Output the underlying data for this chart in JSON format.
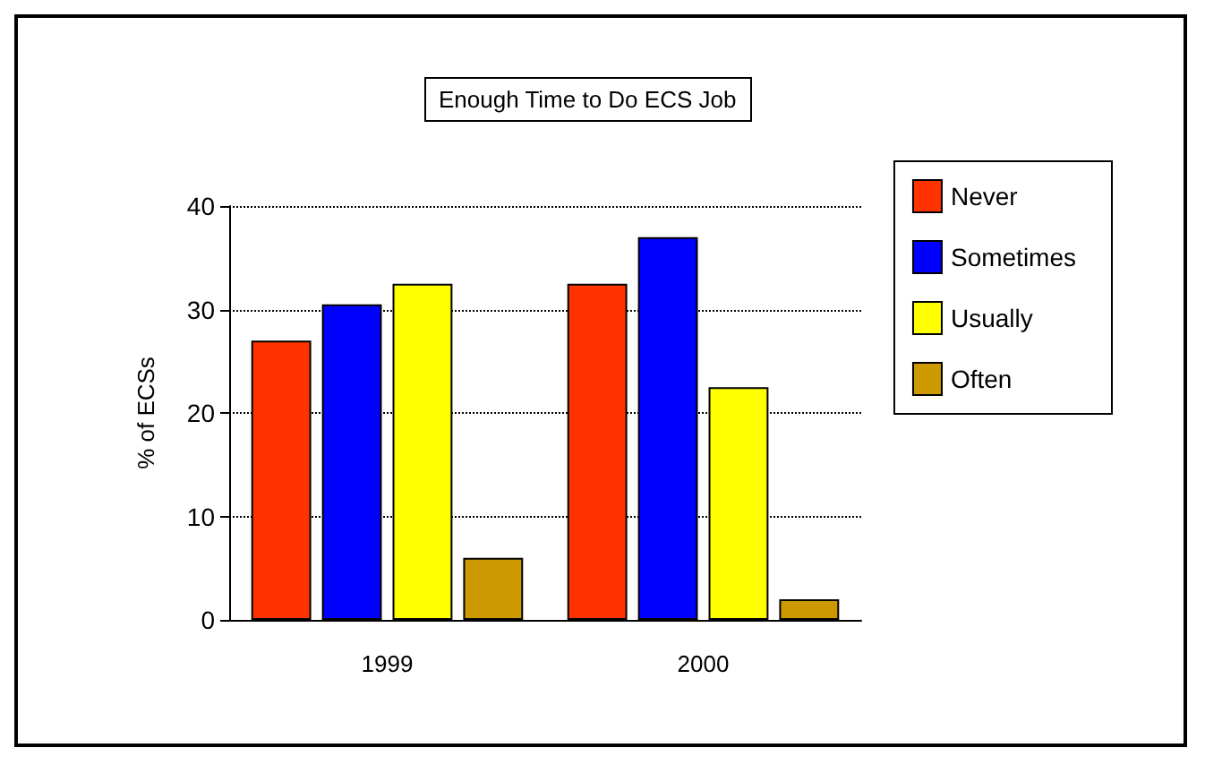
{
  "chart_data": {
    "type": "bar",
    "title": "Enough Time to Do ECS Job",
    "ylabel": "% of ECSs",
    "categories": [
      "1999",
      "2000"
    ],
    "series": [
      {
        "name": "Never",
        "color": "#ff3300",
        "values": [
          27,
          32.5
        ]
      },
      {
        "name": "Sometimes",
        "color": "#0000ff",
        "values": [
          30.5,
          37
        ]
      },
      {
        "name": "Usually",
        "color": "#ffff00",
        "values": [
          32.5,
          22.5
        ]
      },
      {
        "name": "Often",
        "color": "#cc9900",
        "values": [
          6,
          2
        ]
      }
    ],
    "ylim": [
      0,
      40
    ],
    "yticks": [
      0,
      10,
      20,
      30,
      40
    ],
    "grid": "y",
    "legend": "right"
  }
}
